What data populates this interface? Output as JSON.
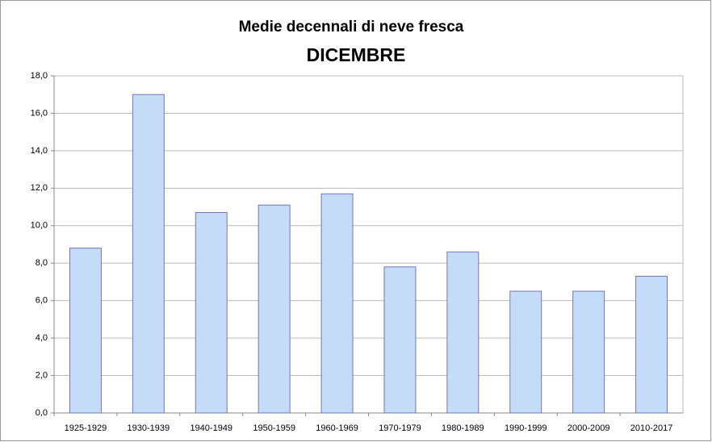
{
  "chart_data": {
    "type": "bar",
    "title": "Medie decennali di neve fresca",
    "subtitle": "DICEMBRE",
    "categories": [
      "1925-1929",
      "1930-1939",
      "1940-1949",
      "1950-1959",
      "1960-1969",
      "1970-1979",
      "1980-1989",
      "1990-1999",
      "2000-2009",
      "2010-2017"
    ],
    "values": [
      8.8,
      17.0,
      10.7,
      11.1,
      11.7,
      7.8,
      8.6,
      6.5,
      6.5,
      7.3
    ],
    "color": "#c4dcf8",
    "ylim": [
      0,
      18
    ],
    "yticks": [
      {
        "value": 0,
        "label": "0,0"
      },
      {
        "value": 2,
        "label": "2,0"
      },
      {
        "value": 4,
        "label": "4,0"
      },
      {
        "value": 6,
        "label": "6,0"
      },
      {
        "value": 8,
        "label": "8,0"
      },
      {
        "value": 10,
        "label": "10,0"
      },
      {
        "value": 12,
        "label": "12,0"
      },
      {
        "value": 14,
        "label": "14,0"
      },
      {
        "value": 16,
        "label": "16,0"
      },
      {
        "value": 18,
        "label": "18,0"
      }
    ],
    "grid": true
  }
}
